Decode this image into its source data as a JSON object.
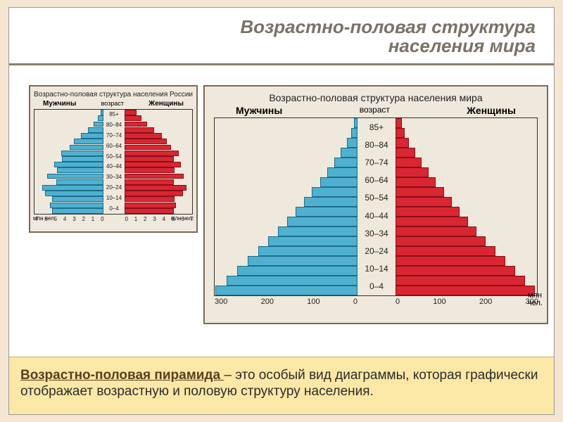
{
  "title_line1": "Возрастно-половая структура",
  "title_line2": "населения мира",
  "footer_term": "Возрастно-половая пирамида ",
  "footer_rest": "– это особый вид диаграммы, которая графически отображает возрастную и половую структуру населения.",
  "colors": {
    "male": "#4fb0cf",
    "male_edge": "#1c6e8c",
    "female": "#d82633",
    "female_edge": "#8a0e18",
    "panel_bg": "#efe8dc",
    "panel_border": "#7a6b58",
    "footer_bg": "#fbe8a6",
    "title_color": "#7a7266"
  },
  "age_labels": [
    "85+",
    "80–84",
    "70–74",
    "60–64",
    "50–54",
    "40–44",
    "30–34",
    "20–24",
    "10–14",
    "0–4"
  ],
  "russia": {
    "title": "Возрастно-половая структура населения России",
    "left_label": "Мужчины",
    "right_label": "Женщины",
    "center_label": "возраст",
    "axis_unit": "млн чел.",
    "xticks_left": [
      "7",
      "6",
      "5",
      "4",
      "3",
      "2",
      "1",
      "0"
    ],
    "xticks_right": [
      "0",
      "1",
      "2",
      "3",
      "4",
      "5",
      "6",
      "7"
    ],
    "xmax": 7,
    "bars": 18,
    "male": [
      0.3,
      0.6,
      1.0,
      1.6,
      2.3,
      3.0,
      3.4,
      4.3,
      4.2,
      5.0,
      4.7,
      5.7,
      4.8,
      6.2,
      5.9,
      5.2,
      5.4,
      5.2
    ],
    "female": [
      1.2,
      1.7,
      2.3,
      3.0,
      3.8,
      4.3,
      4.7,
      5.5,
      5.0,
      5.7,
      5.1,
      6.0,
      5.0,
      6.3,
      5.9,
      5.1,
      5.2,
      5.0
    ]
  },
  "world": {
    "title": "Возрастно-половая структура населения мира",
    "left_label": "Мужчины",
    "right_label": "Женщины",
    "center_label": "возраст",
    "axis_unit": "млн\nчел.",
    "xticks_left": [
      "300",
      "200",
      "100",
      "0"
    ],
    "xticks_right": [
      "0",
      "100",
      "200",
      "300"
    ],
    "xmax": 320,
    "bars": 18,
    "male": [
      8,
      14,
      24,
      38,
      52,
      68,
      84,
      102,
      120,
      138,
      158,
      178,
      200,
      222,
      246,
      270,
      294,
      318
    ],
    "female": [
      14,
      20,
      30,
      44,
      58,
      74,
      90,
      108,
      126,
      144,
      162,
      182,
      202,
      224,
      246,
      268,
      290,
      312
    ]
  }
}
